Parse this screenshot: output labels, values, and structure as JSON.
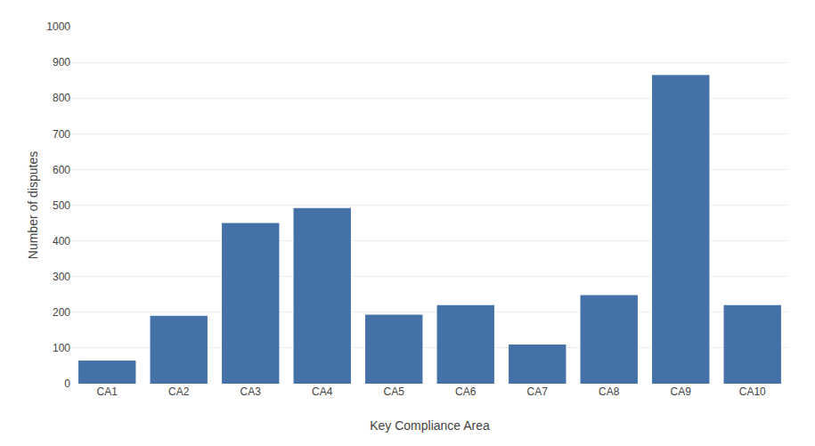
{
  "chart_data": {
    "type": "bar",
    "xlabel": "Key Compliance Area",
    "ylabel": "Number of disputes",
    "categories": [
      "CA1",
      "CA2",
      "CA3",
      "CA4",
      "CA5",
      "CA6",
      "CA7",
      "CA8",
      "CA9",
      "CA10"
    ],
    "values": [
      65,
      190,
      450,
      492,
      193,
      220,
      110,
      248,
      865,
      220
    ],
    "color": "#4472a8",
    "ylim": [
      0,
      1000
    ],
    "yticks": [
      0,
      100,
      200,
      300,
      400,
      500,
      600,
      700,
      800,
      900,
      1000
    ],
    "grid": true
  }
}
